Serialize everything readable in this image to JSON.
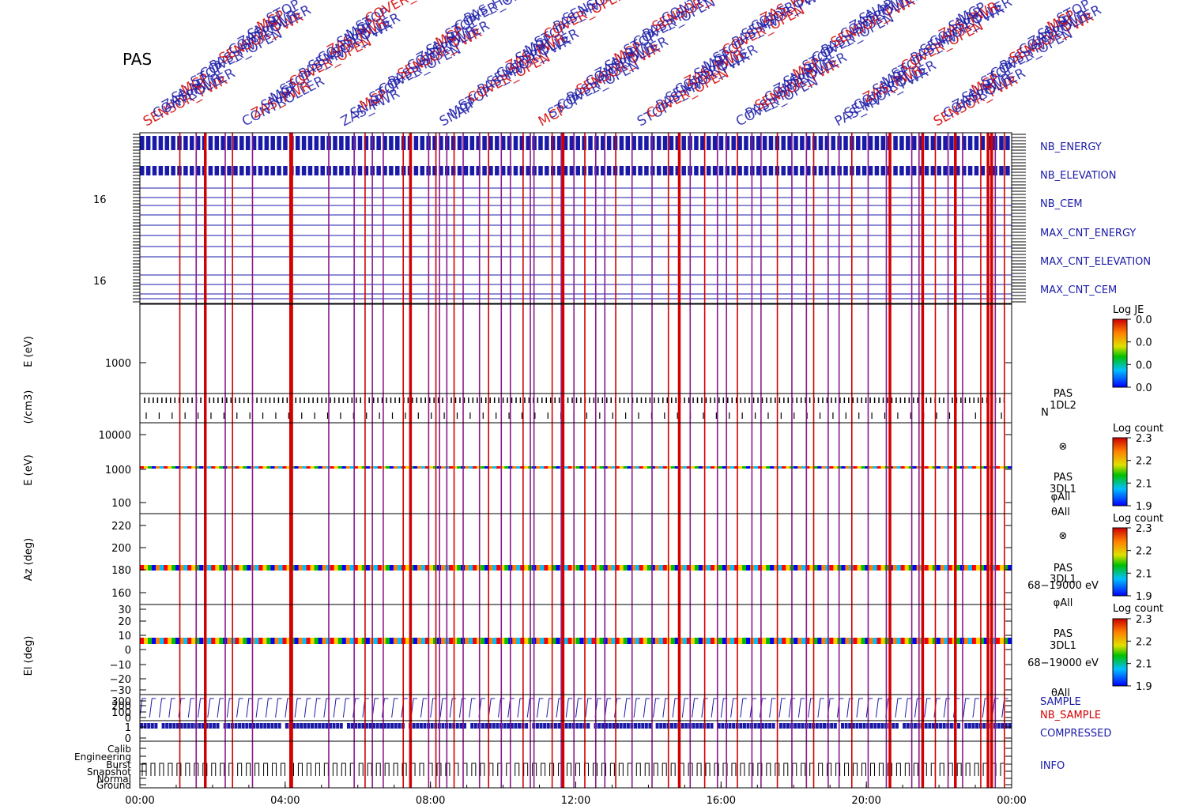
{
  "instrument_title": "PAS",
  "header_strings": [
    "SENSOR_PWR",
    "CONTROLLER",
    "ZAS_PWR",
    "SNAP",
    "MCP",
    "STOP",
    "COVER_OPEN",
    "PAS_HV"
  ],
  "colors": {
    "blue": "#1a1aa8",
    "red": "#d40000",
    "purple": "#8b1a8b",
    "axis": "#000000"
  },
  "chart_data": {
    "type": "line",
    "x_axis": {
      "ticks": [
        "00:00",
        "04:00",
        "08:00",
        "12:00",
        "16:00",
        "20:00",
        "00:00"
      ],
      "range_hours": [
        0,
        24
      ]
    },
    "panels": [
      {
        "id": "nb_energy",
        "label": "NB_ENERGY",
        "color": "#1a1aa8"
      },
      {
        "id": "nb_elevation",
        "label": "NB_ELEVATION",
        "color": "#1a1aa8"
      },
      {
        "id": "nb_cem",
        "label": "NB_CEM",
        "color": "#1a1aa8",
        "ytick": "16"
      },
      {
        "id": "max_cnt_energy",
        "label": "MAX_CNT_ENERGY",
        "color": "#1a1aa8"
      },
      {
        "id": "max_cnt_elevation",
        "label": "MAX_CNT_ELEVATION",
        "color": "#1a1aa8"
      },
      {
        "id": "max_cnt_cem",
        "label": "MAX_CNT_CEM",
        "color": "#1a1aa8",
        "ytick": "16"
      },
      {
        "id": "energy_1dl2",
        "ylabel": "E (eV)",
        "yticks": [
          "1000"
        ],
        "colorbar_title": "Log JE",
        "colorbar_ticks": [
          "0.0",
          "0.0",
          "0.0",
          "0.0"
        ]
      },
      {
        "id": "density",
        "ylabel": "(/cm3)",
        "side_label": [
          "PAS",
          "1DL2",
          "N"
        ]
      },
      {
        "id": "energy_3dl1",
        "ylabel": "E (eV)",
        "yticks": [
          "10000",
          "1000",
          "100"
        ],
        "side_label": [
          "⊗",
          "PAS",
          "3DL1",
          "φAll",
          "θAll"
        ],
        "colorbar_title": "Log count",
        "colorbar_ticks": [
          "2.3",
          "2.2",
          "2.1",
          "1.9"
        ]
      },
      {
        "id": "azimuth",
        "ylabel": "Az (deg)",
        "yticks": [
          "220",
          "200",
          "180",
          "160"
        ],
        "side_label": [
          "⊗",
          "PAS",
          "3DL1",
          "68−19000 eV",
          "φAll"
        ],
        "colorbar_title": "Log count",
        "colorbar_ticks": [
          "2.3",
          "2.2",
          "2.1",
          "1.9"
        ]
      },
      {
        "id": "elevation",
        "ylabel": "El (deg)",
        "yticks": [
          "30",
          "20",
          "10",
          "0",
          "−10",
          "−20",
          "−30"
        ],
        "side_label": [
          "PAS",
          "3DL1",
          "68−19000 eV",
          "θAll"
        ],
        "colorbar_title": "Log count",
        "colorbar_ticks": [
          "2.3",
          "2.2",
          "2.1",
          "1.9"
        ]
      },
      {
        "id": "sample",
        "labels": [
          "SAMPLE",
          "NB_SAMPLE"
        ],
        "yticks": [
          "300",
          "200",
          "100",
          "0"
        ]
      },
      {
        "id": "compressed",
        "label": "COMPRESSED",
        "yticks": [
          "1",
          "0"
        ]
      },
      {
        "id": "info",
        "label": "INFO",
        "yticks": [
          "Calib",
          "Engineering",
          "Burst",
          "Snapshot",
          "Normal",
          "Ground"
        ]
      }
    ],
    "red_marker_hours": [
      1.1,
      1.55,
      2.35,
      2.55,
      3.1,
      4.15,
      4.2,
      5.2,
      5.9,
      6.2,
      6.4,
      6.7,
      7.25,
      7.45,
      7.95,
      8.15,
      8.25,
      8.45,
      8.65,
      8.9,
      9.35,
      9.6,
      9.95,
      10.2,
      10.55,
      10.75,
      10.85,
      11.35,
      11.6,
      11.95,
      12.25,
      12.55,
      12.8,
      13.1,
      13.55,
      14.1,
      14.55,
      14.85,
      15.15,
      15.55,
      15.9,
      16.15,
      16.45,
      16.85,
      17.1,
      17.55,
      17.95,
      18.35,
      18.55,
      18.95,
      19.25,
      19.6,
      20.05,
      20.55,
      20.65,
      21.25,
      21.45,
      21.9,
      22.25,
      22.65,
      23.15,
      23.35,
      23.55,
      23.8
    ],
    "thick_red_marker_hours": [
      1.8,
      4.15,
      7.45,
      11.65,
      14.85,
      20.65,
      21.55,
      22.45,
      23.35,
      23.45
    ]
  }
}
